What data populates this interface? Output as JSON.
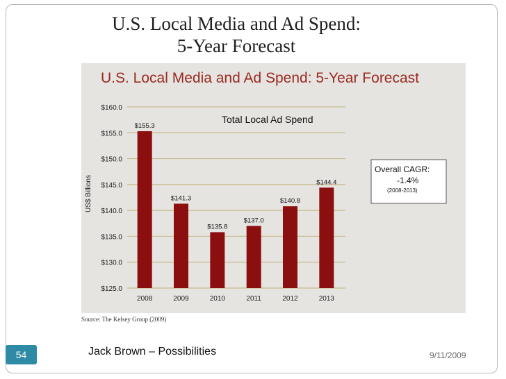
{
  "slide": {
    "title_line1": "U.S. Local Media and Ad Spend:",
    "title_line2": "5-Year Forecast",
    "source": "Source: The Kelsey Group (2009)",
    "presenter": "Jack Brown – Possibilities",
    "date": "9/11/2009",
    "page_number": "54"
  },
  "colors": {
    "bar": "#8b0f0f",
    "panel_bg": "#e6e4e1",
    "gridline": "#c7b98c",
    "header_text": "#9a2a20",
    "accent": "#2e8ba6"
  },
  "chart_data": {
    "type": "bar",
    "title": "U.S. Local Media and Ad Spend: 5-Year Forecast",
    "subtitle": "Total Local Ad Spend",
    "xlabel": "",
    "ylabel": "US$ Billions",
    "categories": [
      "2008",
      "2009",
      "2010",
      "2011",
      "2012",
      "2013"
    ],
    "values": [
      155.3,
      141.3,
      135.8,
      137.0,
      140.8,
      144.4
    ],
    "value_labels": [
      "$155.3",
      "$141.3",
      "$135.8",
      "$137.0",
      "$140.8",
      "$144.4"
    ],
    "ylim": [
      125,
      160
    ],
    "yticks": [
      125,
      130,
      135,
      140,
      145,
      150,
      155,
      160
    ],
    "ytick_labels": [
      "$125.0",
      "$130.0",
      "$135.0",
      "$140.0",
      "$145.0",
      "$150.0",
      "$155.0",
      "$160.0"
    ],
    "grid": true,
    "annotation": {
      "line1": "Overall CAGR:",
      "line2": "-1.4%",
      "line3": "(2008-2013)"
    }
  }
}
